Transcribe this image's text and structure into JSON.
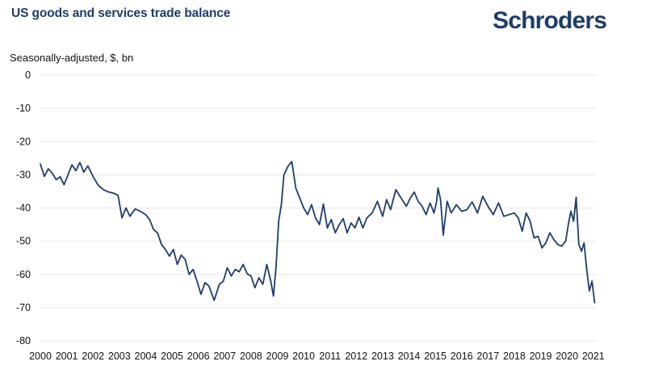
{
  "chart_data": {
    "type": "line",
    "title": "US goods and services trade balance",
    "ylabel": "Seasonally-adjusted, $, bn",
    "xlabel": "",
    "brand": "Schroders",
    "colors": {
      "line": "#1d3d6b",
      "title": "#1d3d6b",
      "grid": "#e6e6e6"
    },
    "grid": true,
    "ylim": [
      -80,
      0
    ],
    "yticks": [
      "0",
      "-10",
      "-20",
      "-30",
      "-40",
      "-50",
      "-60",
      "-70",
      "-80"
    ],
    "ytick_values": [
      0,
      -10,
      -20,
      -30,
      -40,
      -50,
      -60,
      -70,
      -80
    ],
    "xlim": [
      2000,
      2021.1
    ],
    "xticks": [
      "2000",
      "2001",
      "2002",
      "2003",
      "2004",
      "2005",
      "2006",
      "2007",
      "2008",
      "2009",
      "2010",
      "2011",
      "2012",
      "2013",
      "2014",
      "2015",
      "2016",
      "2017",
      "2018",
      "2019",
      "2020",
      "2021"
    ],
    "xtick_values": [
      2000,
      2001,
      2002,
      2003,
      2004,
      2005,
      2006,
      2007,
      2008,
      2009,
      2010,
      2011,
      2012,
      2013,
      2014,
      2015,
      2016,
      2017,
      2018,
      2019,
      2020,
      2021
    ],
    "series": [
      {
        "x": [
          2000.0,
          2000.15,
          2000.3,
          2000.45,
          2000.6,
          2000.75,
          2000.9,
          2001.05,
          2001.2,
          2001.35,
          2001.5,
          2001.65,
          2001.8,
          2002.0,
          2002.2,
          2002.4,
          2002.6,
          2002.8,
          2002.95,
          2003.1,
          2003.25,
          2003.4,
          2003.6,
          2003.8,
          2004.0,
          2004.15,
          2004.3,
          2004.45,
          2004.6,
          2004.75,
          2004.9,
          2005.05,
          2005.2,
          2005.35,
          2005.5,
          2005.65,
          2005.8,
          2005.95,
          2006.1,
          2006.25,
          2006.4,
          2006.6,
          2006.8,
          2006.95,
          2007.1,
          2007.25,
          2007.4,
          2007.55,
          2007.7,
          2007.85,
          2008.0,
          2008.15,
          2008.3,
          2008.45,
          2008.6,
          2008.75,
          2008.85,
          2008.95,
          2009.05,
          2009.15,
          2009.25,
          2009.4,
          2009.55,
          2009.7,
          2009.85,
          2010.0,
          2010.15,
          2010.3,
          2010.45,
          2010.6,
          2010.75,
          2010.9,
          2011.05,
          2011.2,
          2011.35,
          2011.5,
          2011.65,
          2011.8,
          2011.95,
          2012.1,
          2012.25,
          2012.4,
          2012.6,
          2012.8,
          2013.0,
          2013.15,
          2013.3,
          2013.5,
          2013.7,
          2013.9,
          2014.05,
          2014.2,
          2014.35,
          2014.5,
          2014.65,
          2014.8,
          2014.95,
          2015.05,
          2015.1,
          2015.2,
          2015.3,
          2015.45,
          2015.6,
          2015.8,
          2016.0,
          2016.2,
          2016.4,
          2016.6,
          2016.8,
          2017.0,
          2017.2,
          2017.4,
          2017.6,
          2017.8,
          2018.0,
          2018.15,
          2018.3,
          2018.45,
          2018.6,
          2018.75,
          2018.9,
          2019.05,
          2019.2,
          2019.35,
          2019.5,
          2019.65,
          2019.8,
          2019.95,
          2020.05,
          2020.15,
          2020.25,
          2020.35,
          2020.45,
          2020.55,
          2020.65,
          2020.75,
          2020.85,
          2020.95,
          2021.05
        ],
        "values": [
          -26.8,
          -30.5,
          -28.2,
          -29.5,
          -31.5,
          -30.6,
          -33.0,
          -30.0,
          -27.0,
          -28.8,
          -26.3,
          -29.2,
          -27.3,
          -30.5,
          -33.2,
          -34.5,
          -35.2,
          -35.6,
          -36.2,
          -43.0,
          -40.0,
          -42.5,
          -40.3,
          -41.0,
          -42.0,
          -43.5,
          -46.5,
          -47.5,
          -51.0,
          -52.5,
          -54.5,
          -52.5,
          -57.0,
          -54.2,
          -55.5,
          -60.0,
          -58.5,
          -62.0,
          -66.0,
          -62.5,
          -63.5,
          -67.8,
          -63.0,
          -62.0,
          -58.0,
          -60.5,
          -58.5,
          -59.2,
          -57.0,
          -59.8,
          -60.5,
          -64.0,
          -61.0,
          -63.0,
          -57.0,
          -62.0,
          -66.5,
          -58.0,
          -44.0,
          -39.0,
          -30.0,
          -27.5,
          -26.0,
          -34.0,
          -37.0,
          -40.0,
          -42.0,
          -39.0,
          -43.0,
          -45.0,
          -38.8,
          -46.0,
          -43.5,
          -47.5,
          -45.0,
          -43.2,
          -47.5,
          -44.5,
          -46.0,
          -42.8,
          -46.0,
          -43.0,
          -41.5,
          -38.0,
          -42.5,
          -37.5,
          -40.5,
          -34.5,
          -37.0,
          -39.5,
          -37.0,
          -35.2,
          -38.0,
          -39.5,
          -42.0,
          -38.5,
          -41.5,
          -38.0,
          -34.0,
          -37.5,
          -48.2,
          -38.0,
          -41.5,
          -39.0,
          -41.0,
          -40.5,
          -38.2,
          -41.5,
          -36.5,
          -39.5,
          -42.0,
          -38.5,
          -42.5,
          -42.0,
          -41.5,
          -43.0,
          -47.0,
          -41.5,
          -44.0,
          -49.0,
          -48.5,
          -52.0,
          -50.5,
          -47.5,
          -49.5,
          -51.0,
          -51.5,
          -50.0,
          -45.0,
          -41.0,
          -44.0,
          -36.8,
          -51.0,
          -53.0,
          -50.5,
          -58.5,
          -65.0,
          -62.0,
          -68.5
        ]
      }
    ]
  }
}
